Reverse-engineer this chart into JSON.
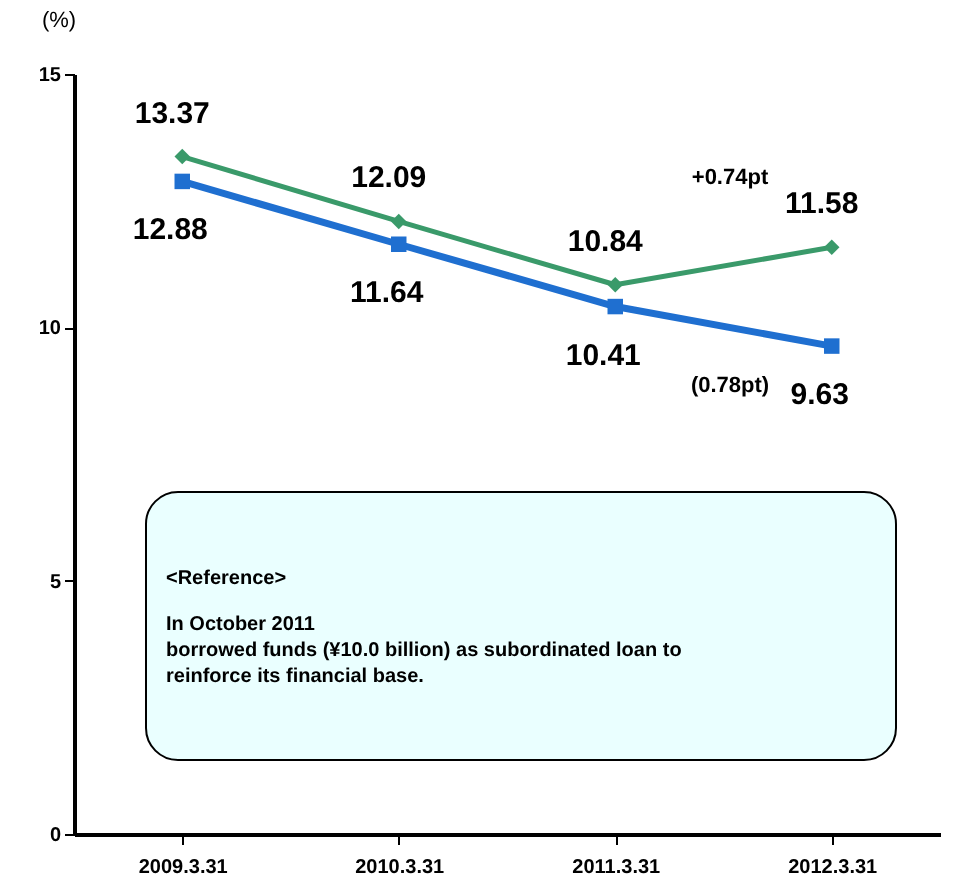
{
  "chart_data": {
    "type": "line",
    "ylabel": "(%)",
    "categories": [
      "2009.3.31",
      "2010.3.31",
      "2011.3.31",
      "2012.3.31"
    ],
    "series": [
      {
        "color": "#3a9a6a",
        "marker": "diamond",
        "values": [
          13.37,
          12.09,
          10.84,
          11.58
        ]
      },
      {
        "color": "#1f6fd0",
        "marker": "square",
        "values": [
          12.88,
          11.64,
          10.41,
          9.63
        ]
      }
    ],
    "ylim": [
      0,
      15
    ],
    "yticks": [
      0,
      5,
      10,
      15
    ],
    "data_labels": true,
    "annotations": [
      "+0.74pt",
      "(0.78pt)",
      "<Reference>",
      "In October 2011",
      "borrowed funds (¥10.0 billion) as subordinated loan to reinforce its financial base."
    ]
  }
}
